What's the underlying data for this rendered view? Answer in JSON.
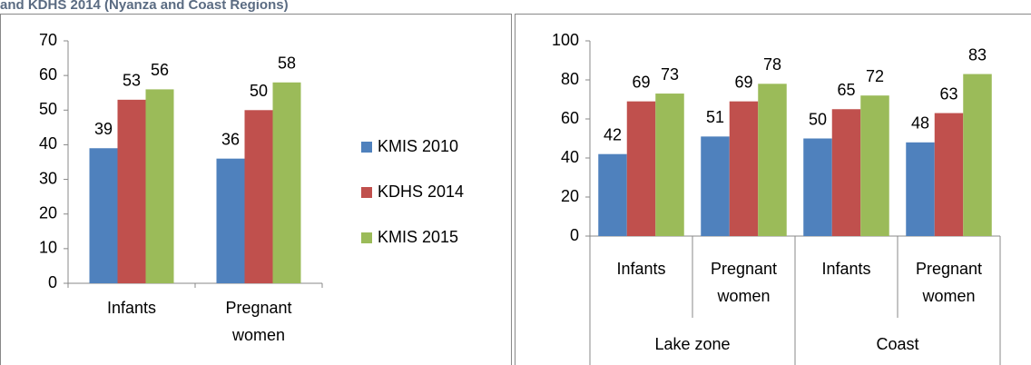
{
  "header": {
    "title": "and KDHS 2014 (Nyanza and Coast Regions)"
  },
  "chart_data": [
    {
      "type": "bar",
      "categories": [
        "Infants",
        "Pregnant women"
      ],
      "series": [
        {
          "name": "KMIS 2010",
          "color": "#4f81bd",
          "values": [
            39,
            36
          ]
        },
        {
          "name": "KDHS 2014",
          "color": "#c0504d",
          "values": [
            53,
            50
          ]
        },
        {
          "name": "KMIS 2015",
          "color": "#9bbb59",
          "values": [
            56,
            58
          ]
        }
      ],
      "ylim": [
        0,
        70
      ],
      "yticks": [
        0,
        10,
        20,
        30,
        40,
        50,
        60,
        70
      ],
      "legend": "right"
    },
    {
      "type": "bar",
      "categories": [
        "Infants",
        "Pregnant women",
        "Infants",
        "Pregnant women"
      ],
      "groups": [
        "Lake zone",
        "Coast"
      ],
      "series": [
        {
          "color": "#4f81bd",
          "values": [
            42,
            51,
            50,
            48
          ]
        },
        {
          "color": "#c0504d",
          "values": [
            69,
            69,
            65,
            63
          ]
        },
        {
          "color": "#9bbb59",
          "values": [
            73,
            78,
            72,
            83
          ]
        }
      ],
      "ylim": [
        0,
        100
      ],
      "yticks": [
        0,
        20,
        40,
        60,
        80,
        100
      ]
    }
  ]
}
